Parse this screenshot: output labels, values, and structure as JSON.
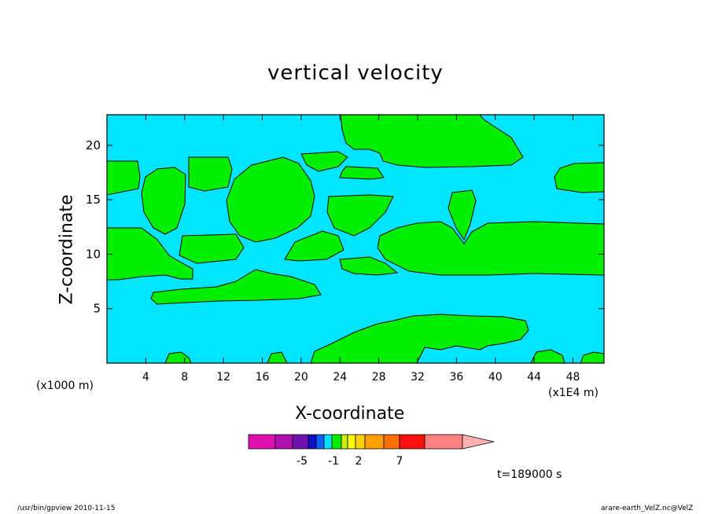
{
  "chart_data": {
    "type": "heatmap",
    "title": "vertical velocity",
    "xlabel": "X-coordinate",
    "ylabel": "Z-coordinate",
    "x_unit_note": "(x1000 m)",
    "x_scale_note": "(x1E4 m)",
    "x_ticks": [
      4,
      8,
      12,
      16,
      20,
      24,
      28,
      32,
      36,
      40,
      44,
      48
    ],
    "y_ticks": [
      5,
      10,
      15,
      20
    ],
    "xlim": [
      0,
      51.2
    ],
    "ylim": [
      0,
      22.8
    ],
    "field_colors": {
      "background": "#00e5ff",
      "positive": "#00ee00"
    },
    "colorbar": {
      "colors": [
        "#e010b0",
        "#b010b0",
        "#7010b0",
        "#1010c8",
        "#1060ff",
        "#00e5ff",
        "#00ee00",
        "#c8f000",
        "#ffff00",
        "#ffd000",
        "#ffa000",
        "#ff7000",
        "#ff1010",
        "#ff8080",
        "#ffb0b0"
      ],
      "labels": [
        "-5",
        "-1",
        "2",
        "7"
      ]
    },
    "time_label": "t=189000 s"
  },
  "footer": {
    "left": "/usr/bin/gpview   2010-11-15",
    "right": "arare-earth_VelZ.nc@VelZ"
  }
}
